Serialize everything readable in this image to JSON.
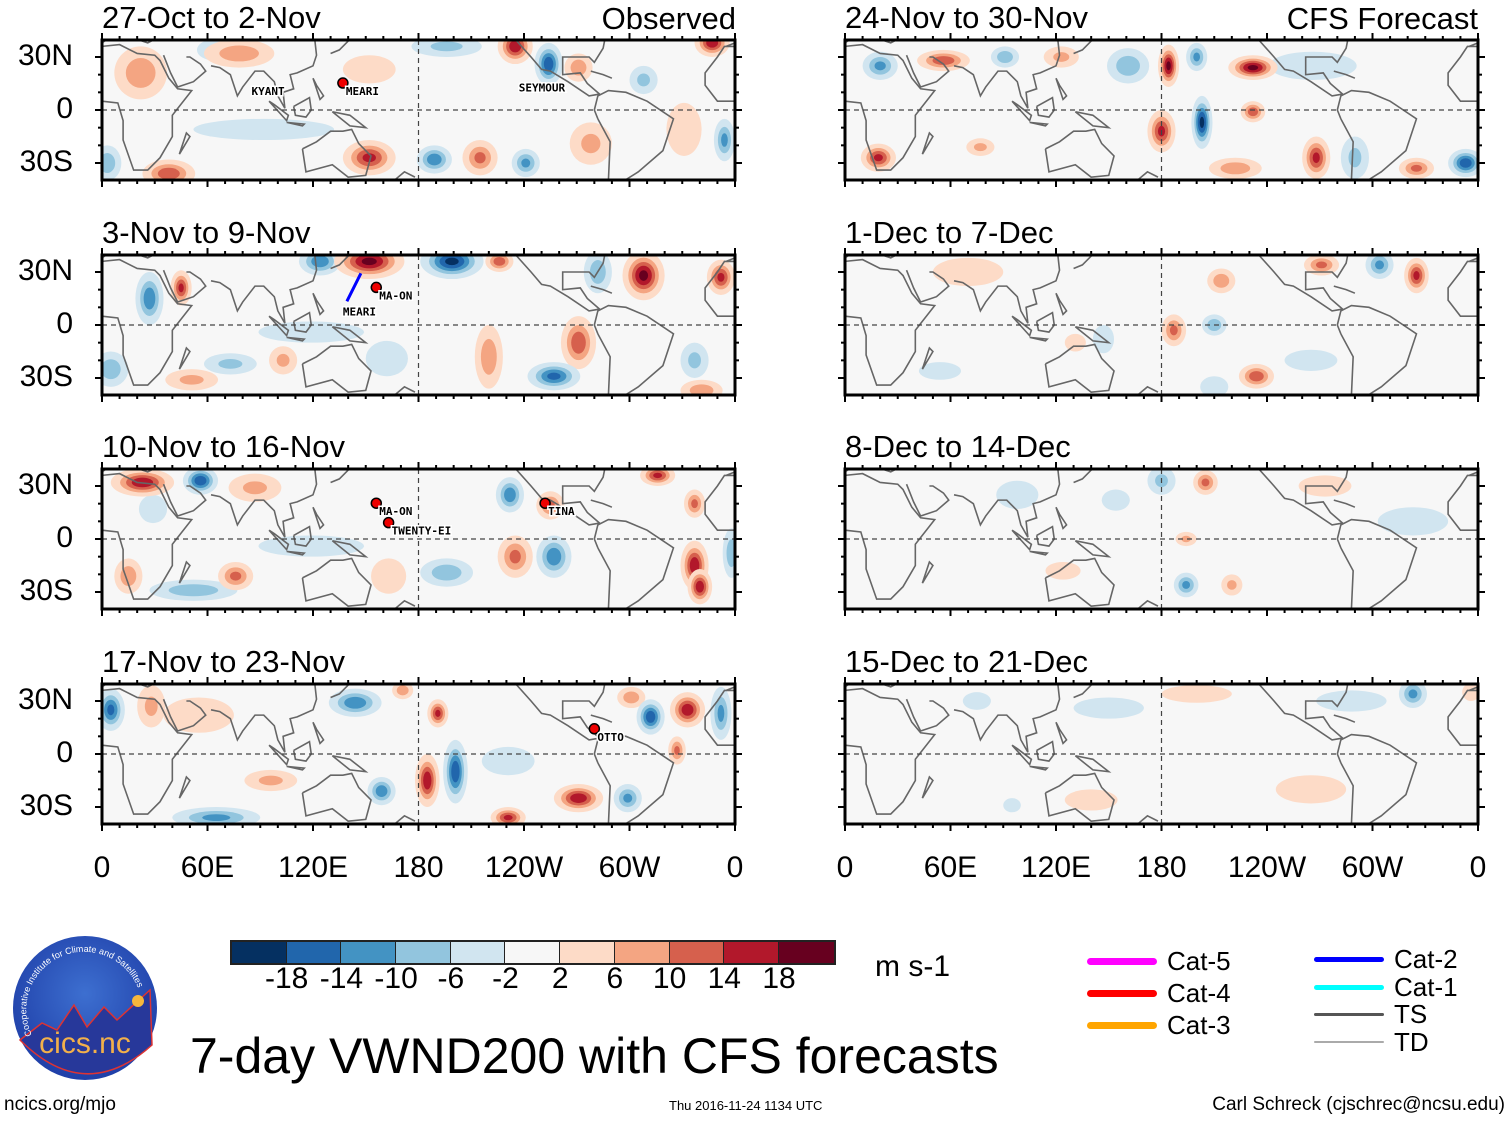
{
  "figure": {
    "title": "7-day VWND200 with CFS forecasts",
    "left_header": "Observed",
    "right_header": "CFS Forecast",
    "units": "m s-1",
    "footer_left": "ncics.org/mjo",
    "footer_center": "Thu 2016-11-24 1134 UTC",
    "footer_right": "Carl Schreck (cjschrec@ncsu.edu)",
    "logo": {
      "name": "cics.nc",
      "ring_text": "Cooperative Institute for Climate and Satellites"
    }
  },
  "chart_data": {
    "type": "heatmap",
    "variable": "200-hPa meridional wind anomaly (7-day mean)",
    "lat_range": [
      -40,
      40
    ],
    "lon_range": [
      0,
      360
    ],
    "lat_ticks": [
      "30N",
      "0",
      "30S"
    ],
    "lon_ticks": [
      "0",
      "60E",
      "120E",
      "180",
      "120W",
      "60W",
      "0"
    ],
    "colorbar": {
      "labels": [
        "-18",
        "-14",
        "-10",
        "-6",
        "-2",
        "2",
        "6",
        "10",
        "14",
        "18"
      ],
      "colors": [
        "#053061",
        "#2166ac",
        "#4393c3",
        "#92c5de",
        "#d1e5f0",
        "#f7f7f7",
        "#fddbc7",
        "#f4a582",
        "#d6604d",
        "#b2182b",
        "#67001f"
      ]
    },
    "storm_legend": [
      {
        "label": "Cat-5",
        "color": "#ff00ff",
        "width": 7
      },
      {
        "label": "Cat-4",
        "color": "#ff0000",
        "width": 7
      },
      {
        "label": "Cat-3",
        "color": "#ffa500",
        "width": 7
      },
      {
        "label": "Cat-2",
        "color": "#0000ff",
        "width": 5
      },
      {
        "label": "Cat-1",
        "color": "#00ffff",
        "width": 5
      },
      {
        "label": "TS",
        "color": "#555555",
        "width": 3
      },
      {
        "label": "TD",
        "color": "#aaaaaa",
        "width": 2
      }
    ],
    "panels": [
      {
        "title": "27-Oct to 2-Nov",
        "column": "observed",
        "anomalies": [
          [
            92,
            -11,
            -4,
            40,
            6
          ],
          [
            331,
            -11,
            6,
            10,
            15
          ],
          [
            152,
            23,
            6,
            15,
            8
          ],
          [
            78,
            32,
            10,
            20,
            8
          ],
          [
            22,
            21,
            10,
            15,
            15
          ],
          [
            152,
            -27,
            16,
            15,
            10
          ],
          [
            38,
            -36,
            14,
            15,
            8
          ],
          [
            3,
            -30,
            -10,
            8,
            10
          ],
          [
            235,
            36,
            18,
            10,
            10
          ],
          [
            254,
            26,
            -18,
            8,
            12
          ],
          [
            271,
            24,
            10,
            8,
            8
          ],
          [
            347,
            38,
            18,
            10,
            8
          ],
          [
            189,
            -28,
            -14,
            10,
            8
          ],
          [
            215,
            -27,
            12,
            10,
            10
          ],
          [
            241,
            -30,
            -12,
            8,
            8
          ],
          [
            278,
            -19,
            8,
            12,
            12
          ],
          [
            354,
            -17,
            -12,
            6,
            12
          ],
          [
            64,
            34,
            -8,
            10,
            6
          ],
          [
            196,
            36,
            -8,
            20,
            6
          ],
          [
            308,
            17,
            -8,
            8,
            8
          ]
        ],
        "storms": [
          {
            "name": "KYANT",
            "lon": 85,
            "lat": 13,
            "marker": false
          },
          {
            "name": "MEARI",
            "lon": 137,
            "lat": 13,
            "marker": true
          },
          {
            "name": "SEYMOUR",
            "lon": 237,
            "lat": 15,
            "marker": false
          }
        ]
      },
      {
        "title": "3-Nov to 9-Nov",
        "column": "observed",
        "anomalies": [
          [
            119,
            -4,
            -4,
            30,
            6
          ],
          [
            162,
            -19,
            -6,
            12,
            10
          ],
          [
            152,
            36,
            20,
            20,
            10
          ],
          [
            199,
            36,
            -20,
            18,
            10
          ],
          [
            124,
            36,
            -14,
            12,
            8
          ],
          [
            45,
            21,
            16,
            6,
            10
          ],
          [
            27,
            15,
            -14,
            8,
            15
          ],
          [
            308,
            28,
            20,
            12,
            14
          ],
          [
            282,
            30,
            -10,
            8,
            12
          ],
          [
            352,
            27,
            16,
            8,
            10
          ],
          [
            226,
            36,
            14,
            8,
            6
          ],
          [
            271,
            -10,
            14,
            10,
            15
          ],
          [
            257,
            -29,
            -16,
            15,
            8
          ],
          [
            220,
            -18,
            10,
            8,
            18
          ],
          [
            103,
            -20,
            8,
            8,
            8
          ],
          [
            73,
            -22,
            -8,
            15,
            6
          ],
          [
            5,
            -25,
            -10,
            10,
            10
          ],
          [
            337,
            -20,
            -8,
            8,
            10
          ],
          [
            341,
            -37,
            10,
            12,
            6
          ],
          [
            51,
            -31,
            8,
            15,
            6
          ]
        ],
        "storms": [
          {
            "name": "MA-ON",
            "lon": 156,
            "lat": 19,
            "marker": true
          },
          {
            "name": "MEARI",
            "lon": 137,
            "lat": 10,
            "marker": false,
            "track": true
          }
        ]
      },
      {
        "title": "10-Nov to 16-Nov",
        "column": "observed",
        "anomalies": [
          [
            119,
            -4,
            -4,
            30,
            6
          ],
          [
            163,
            -21,
            6,
            10,
            10
          ],
          [
            29,
            17,
            -6,
            8,
            8
          ],
          [
            23,
            32,
            18,
            18,
            8
          ],
          [
            56,
            33,
            -18,
            10,
            8
          ],
          [
            87,
            29,
            8,
            15,
            8
          ],
          [
            232,
            25,
            -14,
            8,
            10
          ],
          [
            255,
            19,
            12,
            8,
            8
          ],
          [
            316,
            36,
            16,
            10,
            6
          ],
          [
            337,
            20,
            12,
            6,
            8
          ],
          [
            337,
            -15,
            18,
            8,
            14
          ],
          [
            340,
            -27,
            18,
            7,
            10
          ],
          [
            257,
            -10,
            -14,
            10,
            12
          ],
          [
            235,
            -10,
            12,
            10,
            12
          ],
          [
            196,
            -19,
            -10,
            15,
            8
          ],
          [
            76,
            -21,
            12,
            10,
            8
          ],
          [
            52,
            -29,
            -10,
            25,
            6
          ],
          [
            15,
            -21,
            10,
            8,
            10
          ],
          [
            358,
            -8,
            -10,
            5,
            14
          ]
        ],
        "storms": [
          {
            "name": "MA-ON",
            "lon": 156,
            "lat": 18,
            "marker": true
          },
          {
            "name": "TWENTY-EI",
            "lon": 163,
            "lat": 7,
            "marker": true
          },
          {
            "name": "TINA",
            "lon": 252,
            "lat": 18,
            "marker": true
          }
        ]
      },
      {
        "title": "17-Nov to 23-Nov",
        "column": "observed",
        "anomalies": [
          [
            55,
            22,
            4,
            20,
            10
          ],
          [
            231,
            -4,
            -6,
            15,
            8
          ],
          [
            96,
            -15,
            8,
            15,
            6
          ],
          [
            5,
            25,
            -16,
            8,
            12
          ],
          [
            28,
            27,
            8,
            8,
            12
          ],
          [
            144,
            29,
            -14,
            15,
            8
          ],
          [
            191,
            23,
            16,
            6,
            8
          ],
          [
            171,
            36,
            10,
            6,
            5
          ],
          [
            185,
            -15,
            18,
            7,
            15
          ],
          [
            201,
            -10,
            -18,
            7,
            18
          ],
          [
            159,
            -21,
            -14,
            8,
            8
          ],
          [
            271,
            -25,
            18,
            14,
            8
          ],
          [
            231,
            -36,
            16,
            10,
            6
          ],
          [
            312,
            21,
            -18,
            8,
            10
          ],
          [
            333,
            25,
            18,
            10,
            10
          ],
          [
            327,
            2,
            12,
            5,
            8
          ],
          [
            352,
            23,
            -12,
            6,
            15
          ],
          [
            65,
            -36,
            -12,
            25,
            6
          ],
          [
            299,
            -25,
            -12,
            8,
            8
          ],
          [
            301,
            32,
            10,
            8,
            6
          ]
        ],
        "storms": [
          {
            "name": "OTTO",
            "lon": 280,
            "lat": 12,
            "marker": true
          }
        ]
      },
      {
        "title": "24-Nov to 30-Nov",
        "column": "forecast",
        "anomalies": [
          [
            266,
            25,
            -6,
            25,
            8
          ],
          [
            20,
            25,
            -12,
            10,
            8
          ],
          [
            56,
            28,
            14,
            15,
            6
          ],
          [
            91,
            30,
            -10,
            8,
            6
          ],
          [
            123,
            30,
            8,
            10,
            6
          ],
          [
            161,
            25,
            -10,
            12,
            10
          ],
          [
            184,
            25,
            20,
            6,
            12
          ],
          [
            180,
            -12,
            16,
            8,
            12
          ],
          [
            203,
            -7,
            -20,
            6,
            15
          ],
          [
            200,
            30,
            -12,
            6,
            8
          ],
          [
            232,
            24,
            20,
            14,
            7
          ],
          [
            232,
            -1,
            14,
            7,
            6
          ],
          [
            268,
            -27,
            16,
            8,
            12
          ],
          [
            222,
            -33,
            10,
            15,
            6
          ],
          [
            325,
            -33,
            12,
            10,
            6
          ],
          [
            353,
            -30,
            -18,
            10,
            8
          ],
          [
            19,
            -27,
            16,
            10,
            8
          ],
          [
            77,
            -21,
            8,
            8,
            5
          ],
          [
            290,
            -27,
            -8,
            8,
            12
          ]
        ],
        "storms": []
      },
      {
        "title": "1-Dec to 7-Dec",
        "column": "forecast",
        "anomalies": [
          [
            70,
            30,
            4,
            20,
            8
          ],
          [
            54,
            -26,
            -6,
            12,
            5
          ],
          [
            265,
            -20,
            -6,
            15,
            6
          ],
          [
            210,
            -35,
            -6,
            8,
            6
          ],
          [
            147,
            -8,
            -6,
            6,
            8
          ],
          [
            131,
            -10,
            6,
            6,
            5
          ],
          [
            325,
            28,
            16,
            7,
            10
          ],
          [
            304,
            34,
            -12,
            8,
            8
          ],
          [
            271,
            34,
            12,
            10,
            6
          ],
          [
            214,
            25,
            10,
            8,
            7
          ],
          [
            187,
            -3,
            12,
            7,
            9
          ],
          [
            210,
            0,
            -10,
            7,
            6
          ],
          [
            234,
            -29,
            14,
            10,
            7
          ]
        ],
        "storms": []
      },
      {
        "title": "8-Dec to 14-Dec",
        "column": "forecast",
        "anomalies": [
          [
            98,
            25,
            -4,
            12,
            8
          ],
          [
            323,
            10,
            -4,
            20,
            8
          ],
          [
            154,
            22,
            -6,
            8,
            6
          ],
          [
            273,
            30,
            6,
            15,
            6
          ],
          [
            124,
            -18,
            6,
            10,
            5
          ],
          [
            205,
            32,
            12,
            7,
            7
          ],
          [
            180,
            33,
            -8,
            8,
            8
          ],
          [
            194,
            0,
            8,
            6,
            4
          ],
          [
            194,
            -26,
            -12,
            7,
            7
          ],
          [
            220,
            -26,
            8,
            6,
            6
          ]
        ],
        "storms": []
      },
      {
        "title": "15-Dec to 21-Dec",
        "column": "forecast",
        "anomalies": [
          [
            150,
            26,
            -4,
            20,
            6
          ],
          [
            200,
            34,
            4,
            20,
            5
          ],
          [
            140,
            -26,
            4,
            15,
            6
          ],
          [
            265,
            -20,
            4,
            20,
            8
          ],
          [
            288,
            30,
            -4,
            20,
            6
          ],
          [
            75,
            30,
            -6,
            8,
            5
          ],
          [
            95,
            -29,
            -6,
            5,
            4
          ],
          [
            356,
            35,
            6,
            5,
            5
          ],
          [
            323,
            34,
            -12,
            8,
            8
          ]
        ],
        "storms": []
      }
    ]
  }
}
